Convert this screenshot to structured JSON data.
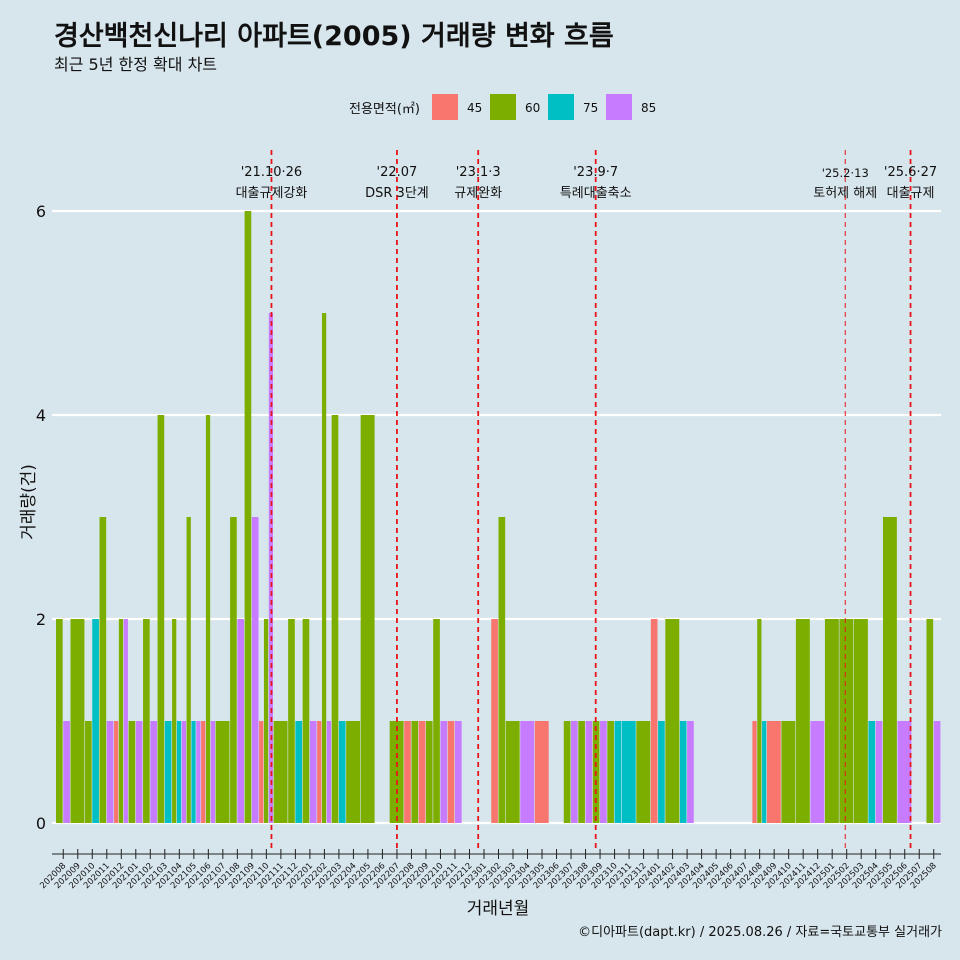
{
  "chart_data": {
    "type": "bar",
    "title": "경산백천신나리 아파트(2005) 거래량 변화 흐름",
    "subtitle": "최근 5년 한정 확대 차트",
    "xlabel": "거래년월",
    "ylabel": "거래량(건)",
    "ylim": [
      0,
      6
    ],
    "yticks": [
      0,
      2,
      4,
      6
    ],
    "grid": "horizontal",
    "legend_title": "전용면적(㎡)",
    "legend_position": "top",
    "caption": "©디아파트(dapt.kr) / 2025.08.26 / 자료=국토교통부 실거래가",
    "categories": [
      "202008",
      "202009",
      "202010",
      "202011",
      "202012",
      "202101",
      "202102",
      "202103",
      "202104",
      "202105",
      "202106",
      "202107",
      "202108",
      "202109",
      "202110",
      "202111",
      "202112",
      "202201",
      "202202",
      "202203",
      "202204",
      "202205",
      "202206",
      "202207",
      "202208",
      "202209",
      "202210",
      "202211",
      "202212",
      "202301",
      "202302",
      "202303",
      "202304",
      "202305",
      "202306",
      "202307",
      "202308",
      "202309",
      "202310",
      "202311",
      "202312",
      "202401",
      "202402",
      "202403",
      "202404",
      "202405",
      "202406",
      "202407",
      "202408",
      "202409",
      "202410",
      "202411",
      "202412",
      "202501",
      "202502",
      "202503",
      "202504",
      "202505",
      "202506",
      "202507",
      "202508"
    ],
    "series": [
      {
        "name": "45",
        "color": "#f8766d",
        "values": [
          0,
          0,
          0,
          0,
          1,
          0,
          0,
          0,
          0,
          0,
          1,
          0,
          0,
          0,
          1,
          0,
          0,
          0,
          1,
          0,
          0,
          0,
          0,
          0,
          1,
          1,
          0,
          1,
          0,
          0,
          2,
          0,
          0,
          1,
          0,
          0,
          0,
          0,
          0,
          0,
          0,
          2,
          0,
          0,
          0,
          0,
          0,
          0,
          1,
          1,
          0,
          0,
          0,
          0,
          0,
          0,
          0,
          0,
          0,
          0,
          0
        ]
      },
      {
        "name": "60",
        "color": "#7cae00",
        "values": [
          2,
          2,
          1,
          3,
          2,
          1,
          2,
          4,
          2,
          3,
          4,
          1,
          3,
          6,
          2,
          1,
          2,
          2,
          5,
          4,
          1,
          4,
          0,
          1,
          1,
          1,
          2,
          0,
          0,
          0,
          3,
          1,
          0,
          0,
          0,
          1,
          1,
          1,
          1,
          0,
          1,
          0,
          2,
          0,
          0,
          0,
          0,
          0,
          2,
          0,
          1,
          2,
          0,
          2,
          2,
          2,
          0,
          3,
          0,
          0,
          2
        ]
      },
      {
        "name": "75",
        "color": "#00bfc4",
        "values": [
          0,
          0,
          2,
          0,
          0,
          0,
          0,
          1,
          1,
          1,
          0,
          0,
          0,
          0,
          0,
          0,
          1,
          0,
          0,
          1,
          0,
          0,
          0,
          0,
          0,
          0,
          0,
          0,
          0,
          0,
          0,
          0,
          0,
          0,
          0,
          0,
          0,
          0,
          1,
          1,
          0,
          1,
          0,
          1,
          0,
          0,
          0,
          0,
          1,
          0,
          0,
          0,
          0,
          0,
          0,
          0,
          1,
          0,
          0,
          0,
          0
        ]
      },
      {
        "name": "85",
        "color": "#c77cff",
        "values": [
          1,
          0,
          0,
          1,
          2,
          1,
          1,
          0,
          1,
          1,
          1,
          0,
          2,
          3,
          5,
          0,
          0,
          1,
          1,
          0,
          0,
          0,
          0,
          0,
          0,
          0,
          1,
          1,
          0,
          0,
          0,
          0,
          1,
          0,
          0,
          1,
          1,
          1,
          0,
          0,
          0,
          0,
          0,
          1,
          0,
          0,
          0,
          0,
          0,
          0,
          0,
          0,
          1,
          0,
          0,
          0,
          1,
          0,
          1,
          0,
          1
        ]
      }
    ],
    "annotations": [
      {
        "date": "'21.10·26",
        "label": "대출규제강화",
        "at": "202110",
        "offset": 0.85,
        "style": "bold"
      },
      {
        "date": "'22.07",
        "label": "DSR 3단계",
        "at": "202207",
        "offset": 0.5,
        "style": "bold"
      },
      {
        "date": "'23.1·3",
        "label": "규제완화",
        "at": "202301",
        "offset": 0.1,
        "style": "bold"
      },
      {
        "date": "'23.9·7",
        "label": "특례대출축소",
        "at": "202309",
        "offset": 0.2,
        "style": "bold"
      },
      {
        "date": "'25.2·13",
        "label": "토허제 해제",
        "at": "202502",
        "offset": 0.4,
        "style": "thin"
      },
      {
        "date": "'25.6·27",
        "label": "대출규제",
        "at": "202506",
        "offset": 0.9,
        "style": "bold"
      }
    ]
  }
}
